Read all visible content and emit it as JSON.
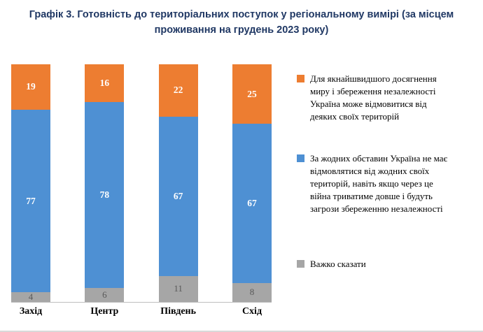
{
  "chart_data": {
    "type": "bar",
    "stacked": true,
    "title": "Графік 3. Готовність до територіальних поступок у регіональному вимірі (за місцем проживання на грудень 2023 року)",
    "categories": [
      "Захід",
      "Центр",
      "Південь",
      "Схід"
    ],
    "series": [
      {
        "name": "Для якнайшвидшого досягнення миру і збереження незалежності Україна може відмовитися від деяких своїх територій",
        "color": "#ED7D31",
        "values": [
          19,
          16,
          22,
          25
        ],
        "label_lines": [
          "Для якнайшвидшого досягнення",
          "миру і збереження незалежності",
          "Україна може відмовитися від",
          "деяких своїх територій"
        ]
      },
      {
        "name": "За жодних обставин Україна не має відмовлятися від жодних своїх територій, навіть якщо через це війна триватиме довше і будуть загрози збереженню незалежності",
        "color": "#4E90D3",
        "values": [
          77,
          78,
          67,
          67
        ],
        "label_lines": [
          "За жодних обставин Україна не має",
          "відмовлятися від жодних своїх",
          "територій, навіть якщо через це",
          "війна триватиме довше і будуть",
          "загрози збереженню незалежності"
        ]
      },
      {
        "name": "Важко сказати",
        "color": "#A6A6A6",
        "values": [
          4,
          6,
          11,
          8
        ],
        "label_lines": [
          "Важко сказати"
        ]
      }
    ],
    "ylim": [
      0,
      100
    ],
    "grid": false,
    "legend_position": "right",
    "colors": {
      "title_text": "#203864",
      "value_label_light": "#FFFFFF",
      "value_label_gray": "#595959",
      "axis_line": "#BFBFBF"
    }
  }
}
